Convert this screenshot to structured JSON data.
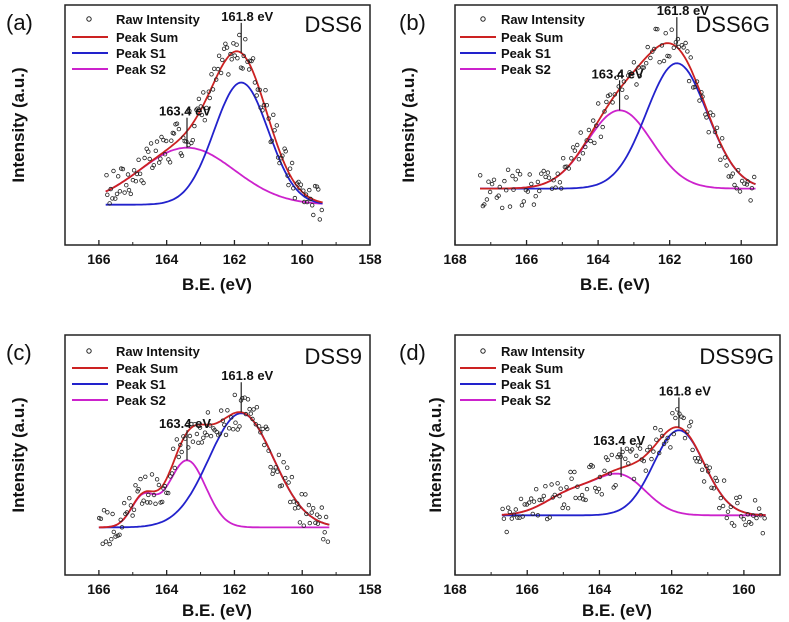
{
  "chart_data": [
    {
      "type": "line",
      "panel_tag": "(a)",
      "title": "DSS6",
      "xlabel": "B.E. (eV)",
      "ylabel": "Intensity (a.u.)",
      "xlim": [
        167,
        158
      ],
      "xticks": [
        "166",
        "164",
        "162",
        "160",
        "158"
      ],
      "x_reversed": true,
      "legend": [
        "Raw Intensity",
        "Peak Sum",
        "Peak S1",
        "Peak S2"
      ],
      "series_colors": {
        "raw": "#222222",
        "sum": "#cc2222",
        "s1": "#2222cc",
        "s2": "#cc22cc"
      },
      "x_range": [
        165.8,
        159.4
      ],
      "baseline": 0.12,
      "s1": {
        "center": 161.8,
        "height": 0.9,
        "width": 0.8
      },
      "s2": {
        "center": 163.4,
        "height": 0.42,
        "width": 1.4
      },
      "annotations": [
        {
          "text": "161.8 eV",
          "x": 161.8
        },
        {
          "text": "163.4 eV",
          "x": 163.4
        }
      ],
      "noise_amp": 0.14
    },
    {
      "type": "line",
      "panel_tag": "(b)",
      "title": "DSS6G",
      "xlabel": "B.E. (eV)",
      "ylabel": "Intensity (a.u.)",
      "xlim": [
        168,
        159
      ],
      "xticks": [
        "168",
        "166",
        "164",
        "162",
        "160"
      ],
      "x_reversed": true,
      "legend": [
        "Raw Intensity",
        "Peak Sum",
        "Peak S1",
        "Peak S2"
      ],
      "series_colors": {
        "raw": "#222222",
        "sum": "#cc2222",
        "s1": "#2222cc",
        "s2": "#cc22cc"
      },
      "x_range": [
        167.3,
        159.6
      ],
      "baseline": 0.16,
      "s1": {
        "center": 161.8,
        "height": 0.88,
        "width": 0.85
      },
      "s2": {
        "center": 163.4,
        "height": 0.55,
        "width": 0.9
      },
      "annotations": [
        {
          "text": "161.8 eV",
          "x": 161.8
        },
        {
          "text": "163.4 eV",
          "x": 163.4
        }
      ],
      "noise_amp": 0.14
    },
    {
      "type": "line",
      "panel_tag": "(c)",
      "title": "DSS9",
      "xlabel": "B.E. (eV)",
      "ylabel": "Intensity (a.u.)",
      "xlim": [
        167,
        158
      ],
      "xticks": [
        "166",
        "164",
        "162",
        "160",
        "158"
      ],
      "x_reversed": true,
      "legend": [
        "Raw Intensity",
        "Peak Sum",
        "Peak S1",
        "Peak S2"
      ],
      "series_colors": {
        "raw": "#222222",
        "sum": "#cc2222",
        "s1": "#2222cc",
        "s2": "#cc22cc"
      },
      "x_range": [
        166.0,
        159.2
      ],
      "baseline": 0.14,
      "s1": {
        "center": 161.8,
        "height": 0.85,
        "width": 0.95
      },
      "s2": {
        "center": 163.4,
        "height": 0.5,
        "width": 0.55
      },
      "s3": {
        "center": 164.7,
        "height": 0.22,
        "width": 0.35
      },
      "annotations": [
        {
          "text": "161.8 eV",
          "x": 161.8
        },
        {
          "text": "163.4 eV",
          "x": 163.4
        }
      ],
      "noise_amp": 0.14
    },
    {
      "type": "line",
      "panel_tag": "(d)",
      "title": "DSS9G",
      "xlabel": "B.E. (eV)",
      "ylabel": "Intensity (a.u.)",
      "xlim": [
        168,
        159
      ],
      "xticks": [
        "168",
        "166",
        "164",
        "162",
        "160"
      ],
      "x_reversed": true,
      "legend": [
        "Raw Intensity",
        "Peak Sum",
        "Peak S1",
        "Peak S2"
      ],
      "series_colors": {
        "raw": "#222222",
        "sum": "#cc2222",
        "s1": "#2222cc",
        "s2": "#cc22cc"
      },
      "x_range": [
        166.7,
        159.4
      ],
      "baseline": 0.15,
      "s1": {
        "center": 161.8,
        "height": 0.6,
        "width": 0.7
      },
      "s2": {
        "center": 163.4,
        "height": 0.27,
        "width": 0.7
      },
      "s3": {
        "center": 164.8,
        "height": 0.15,
        "width": 0.7
      },
      "annotations": [
        {
          "text": "161.8 eV",
          "x": 161.8
        },
        {
          "text": "163.4 eV",
          "x": 163.4
        }
      ],
      "noise_amp": 0.13
    }
  ]
}
